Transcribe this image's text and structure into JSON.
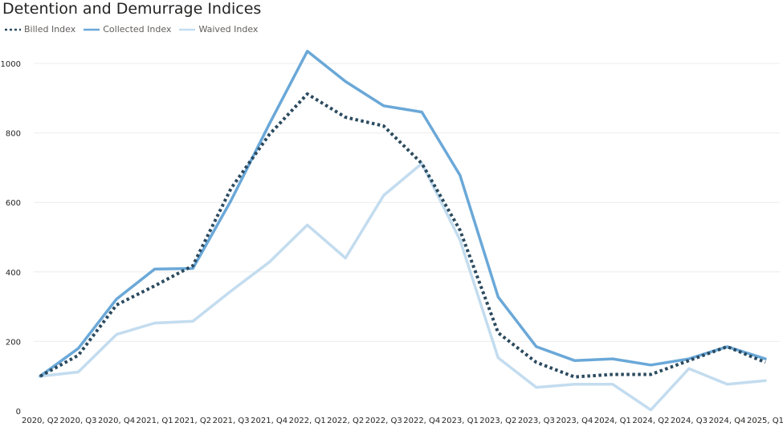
{
  "chart_data": {
    "type": "line",
    "title": "Detention and Demurrage Indices",
    "xlabel": "",
    "ylabel": "",
    "ylim": [
      0,
      1000
    ],
    "yticks": [
      "0",
      "200",
      "400",
      "600",
      "800",
      "1000"
    ],
    "grid": true,
    "legend_position": "top-left",
    "categories": [
      "2020, Q2",
      "2020, Q3",
      "2020, Q4",
      "2021, Q1",
      "2021, Q2",
      "2021, Q3",
      "2021, Q4",
      "2022, Q1",
      "2022, Q2",
      "2022, Q3",
      "2022, Q4",
      "2023, Q1",
      "2023, Q2",
      "2023, Q3",
      "2023, Q4",
      "2024, Q1",
      "2024, Q2",
      "2024, Q3",
      "2024, Q4",
      "2025, Q1"
    ],
    "series": [
      {
        "name": "Billed Index",
        "color": "#2b4a5f",
        "style": "dotted",
        "values": [
          100,
          160,
          305,
          360,
          418,
          640,
          795,
          912,
          845,
          820,
          712,
          520,
          225,
          140,
          98,
          105,
          105,
          145,
          185,
          140
        ]
      },
      {
        "name": "Collected Index",
        "color": "#6aa8d8",
        "style": "solid",
        "values": [
          100,
          180,
          322,
          408,
          410,
          605,
          825,
          1035,
          948,
          878,
          860,
          678,
          328,
          185,
          145,
          150,
          132,
          150,
          185,
          150
        ]
      },
      {
        "name": "Waived Index",
        "color": "#c3dcef",
        "style": "solid",
        "values": [
          100,
          112,
          220,
          253,
          258,
          345,
          428,
          535,
          440,
          620,
          712,
          492,
          153,
          68,
          77,
          77,
          3,
          122,
          77,
          87
        ]
      }
    ]
  }
}
